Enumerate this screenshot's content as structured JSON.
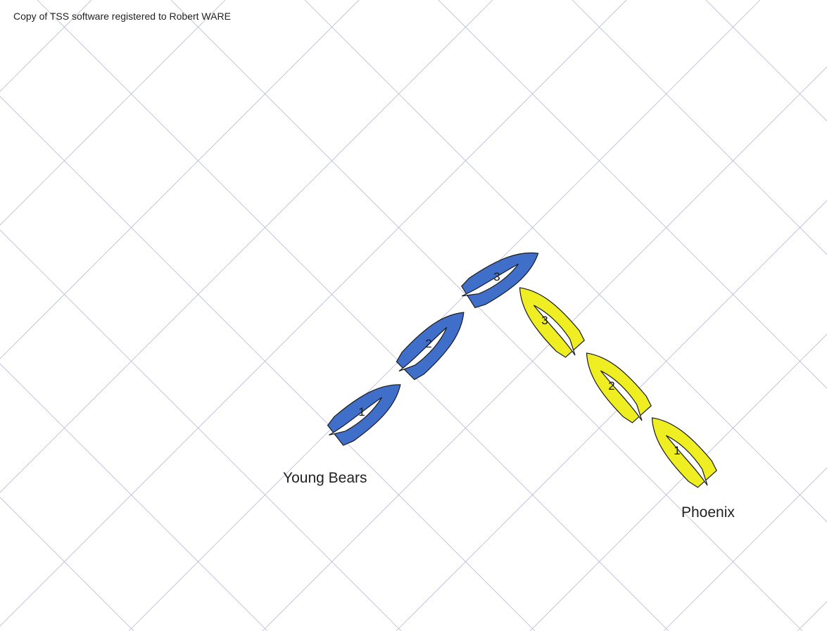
{
  "watermark": {
    "text": "Copy of TSS software registered to Robert WARE"
  },
  "teams": [
    {
      "name": "Young Bears",
      "color": "#3f6fc9",
      "boats": [
        {
          "number": "1"
        },
        {
          "number": "2"
        },
        {
          "number": "3"
        }
      ]
    },
    {
      "name": "Phoenix",
      "color": "#eeee22",
      "boats": [
        {
          "number": "1"
        },
        {
          "number": "2"
        },
        {
          "number": "3"
        }
      ]
    }
  ],
  "colors": {
    "grid": "#b8b8e6",
    "hull_outline": "#1b1b1b",
    "background": "#ffffff"
  }
}
